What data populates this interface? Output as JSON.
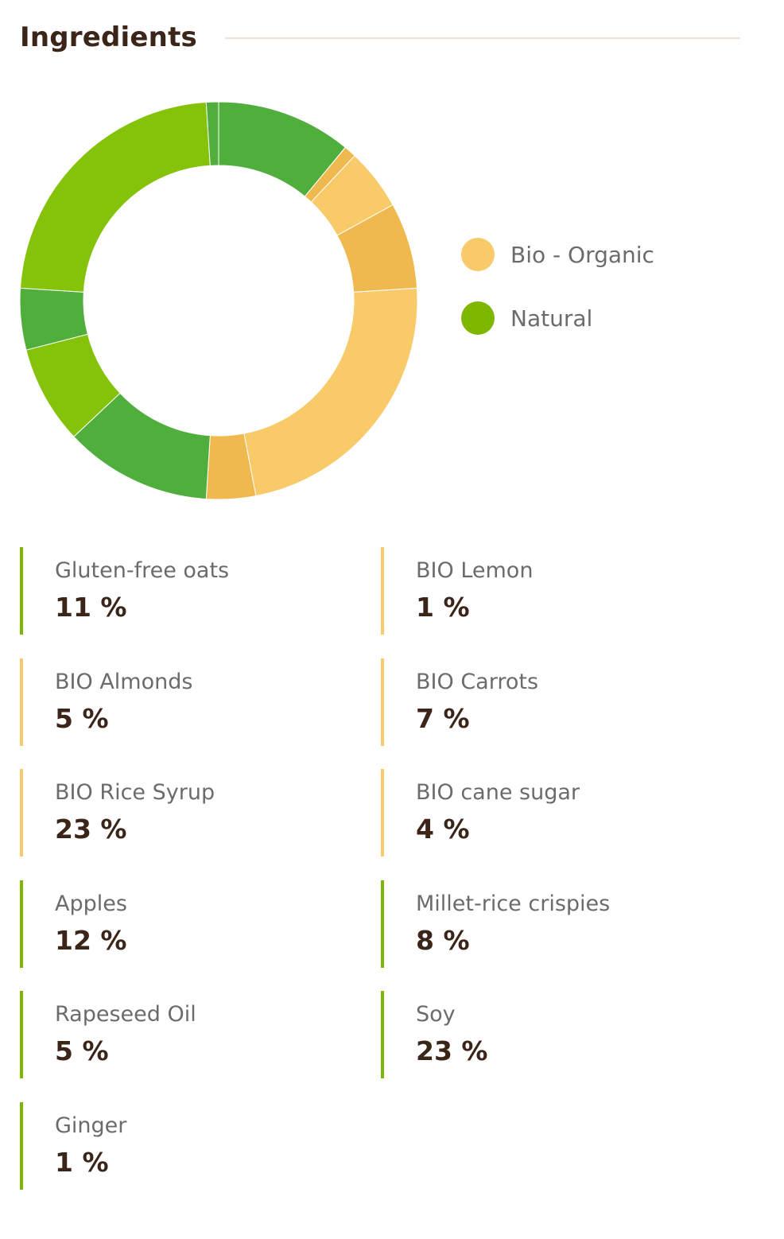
{
  "header": {
    "title": "Ingredients"
  },
  "colors": {
    "organic": "#f9ca6a",
    "organic_dark": "#f0b94f",
    "natural": "#7db700",
    "natural_a": "#4fae3c",
    "natural_b": "#85c20a",
    "text_dark": "#3b2418",
    "text_muted": "#6b6b6b",
    "rule": "#f1e3cf"
  },
  "legend": [
    {
      "label": "Bio - Organic",
      "color": "#f9ca6a"
    },
    {
      "label": "Natural",
      "color": "#7db700"
    }
  ],
  "ingredients": [
    {
      "name": "Gluten-free oats",
      "value": "11 %",
      "category": "natural"
    },
    {
      "name": "BIO Lemon",
      "value": "1 %",
      "category": "organic"
    },
    {
      "name": "BIO Almonds",
      "value": "5 %",
      "category": "organic"
    },
    {
      "name": "BIO Carrots",
      "value": "7 %",
      "category": "organic"
    },
    {
      "name": "BIO Rice Syrup",
      "value": "23 %",
      "category": "organic"
    },
    {
      "name": "BIO cane sugar",
      "value": "4 %",
      "category": "organic"
    },
    {
      "name": "Apples",
      "value": "12 %",
      "category": "natural"
    },
    {
      "name": "Millet-rice crispies",
      "value": "8 %",
      "category": "natural"
    },
    {
      "name": "Rapeseed Oil",
      "value": "5 %",
      "category": "natural"
    },
    {
      "name": "Soy",
      "value": "23 %",
      "category": "natural"
    },
    {
      "name": "Ginger",
      "value": "1 %",
      "category": "natural"
    }
  ],
  "chart_data": {
    "type": "pie",
    "variant": "donut",
    "title": "",
    "legend_placement": "right",
    "categories": [
      "Gluten-free oats",
      "BIO Lemon",
      "BIO Almonds",
      "BIO Carrots",
      "BIO Rice Syrup",
      "BIO cane sugar",
      "Apples",
      "Millet-rice crispies",
      "Rapeseed Oil",
      "Soy",
      "Ginger"
    ],
    "values": [
      11,
      1,
      5,
      7,
      23,
      4,
      12,
      8,
      5,
      23,
      1
    ],
    "slice_colors": [
      "#4fae3c",
      "#f0b94f",
      "#f9ca6a",
      "#f0b94f",
      "#f9ca6a",
      "#f0b94f",
      "#4fae3c",
      "#85c20a",
      "#4fae3c",
      "#85c20a",
      "#4fae3c"
    ]
  }
}
